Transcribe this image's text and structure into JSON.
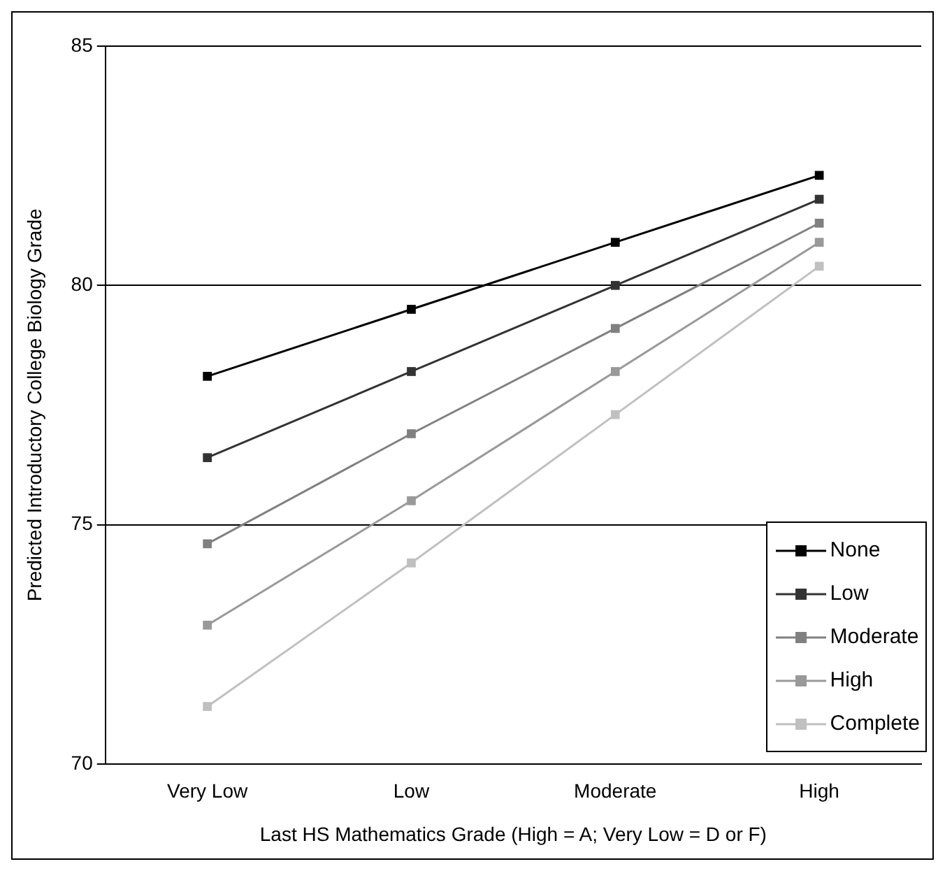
{
  "chart_data": {
    "type": "line",
    "xlabel": "Last HS Mathematics Grade (High = A; Very Low = D or F)",
    "ylabel": "Predicted Introductory College Biology Grade",
    "categories": [
      "Very Low",
      "Low",
      "Moderate",
      "High"
    ],
    "series": [
      {
        "name": "None",
        "color": "#000000",
        "values": [
          78.1,
          79.5,
          80.9,
          82.3
        ]
      },
      {
        "name": "Low",
        "color": "#333333",
        "values": [
          76.4,
          78.2,
          80.0,
          81.8
        ]
      },
      {
        "name": "Moderate",
        "color": "#808080",
        "values": [
          74.6,
          76.9,
          79.1,
          81.3
        ]
      },
      {
        "name": "High",
        "color": "#999999",
        "values": [
          72.9,
          75.5,
          78.2,
          80.9
        ]
      },
      {
        "name": "Complete",
        "color": "#c0c0c0",
        "values": [
          71.2,
          74.2,
          77.3,
          80.4
        ]
      }
    ],
    "ylim": [
      70,
      85
    ],
    "yticks": [
      70,
      75,
      80,
      85
    ],
    "grid": "y",
    "legend": "bottom right",
    "marker": "square",
    "line_style": "solid"
  }
}
